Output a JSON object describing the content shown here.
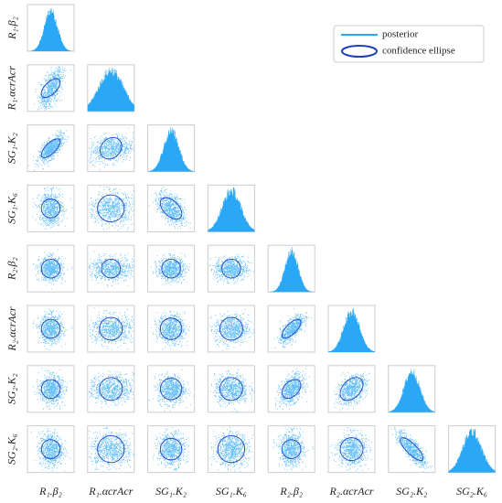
{
  "chart_data": {
    "type": "corner",
    "variables": [
      "R₁.β₂",
      "R₁.αcrAcr",
      "SG₁.K₂",
      "SG₁.K₆",
      "R₂.β₂",
      "R₂.αcrAcr",
      "SG₂.K₂",
      "SG₂.K₆"
    ],
    "correlations": [
      [],
      [
        0.6
      ],
      [
        0.7,
        0.2
      ],
      [
        0,
        0,
        -0.5
      ],
      [
        0,
        0,
        0,
        0
      ],
      [
        0,
        0,
        0,
        0,
        0.7
      ],
      [
        0,
        0,
        0,
        0,
        0.4,
        0.4
      ],
      [
        0,
        0,
        0,
        0,
        0,
        0,
        -0.8
      ]
    ],
    "legend": {
      "posterior": "posterior",
      "ellipse": "confidence ellipse"
    },
    "color": "#2aa7f5",
    "ellipse_color": "#1f3fbf"
  }
}
